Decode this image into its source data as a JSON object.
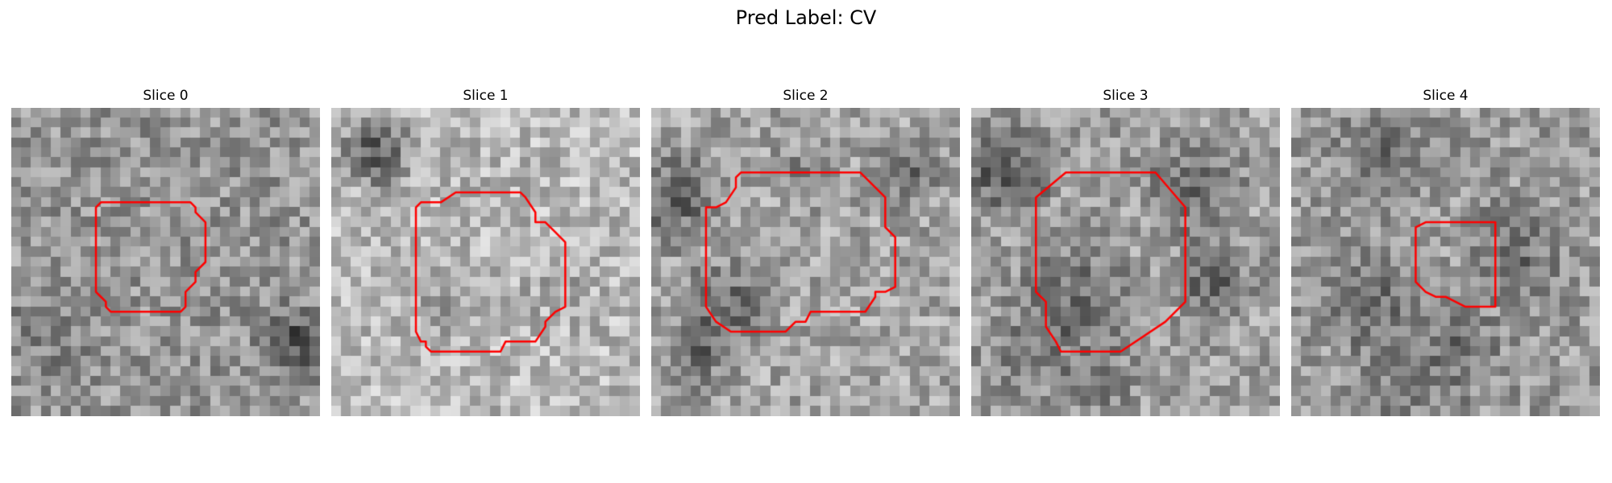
{
  "figure": {
    "title": "Pred Label: CV"
  },
  "colors": {
    "contour": "#ff0000",
    "background": "#ffffff",
    "colormap": "gray"
  },
  "panels": [
    {
      "title": "Slice 0",
      "grid_size": 31,
      "contour": [
        [
          9,
          9.5
        ],
        [
          18,
          9.5
        ],
        [
          18.5,
          10
        ],
        [
          18.5,
          10.5
        ],
        [
          19.5,
          11.5
        ],
        [
          19.5,
          15.5
        ],
        [
          18.5,
          16.5
        ],
        [
          18.5,
          17.5
        ],
        [
          17.5,
          18.5
        ],
        [
          17.5,
          20
        ],
        [
          17,
          20.5
        ],
        [
          10,
          20.5
        ],
        [
          9.5,
          20
        ],
        [
          9.5,
          19.5
        ],
        [
          9,
          19
        ],
        [
          8.5,
          18.5
        ],
        [
          8.5,
          10
        ]
      ]
    },
    {
      "title": "Slice 1",
      "grid_size": 31,
      "contour": [
        [
          9,
          9.5
        ],
        [
          11,
          9.5
        ],
        [
          12.5,
          8.5
        ],
        [
          14,
          8.5
        ],
        [
          19,
          8.5
        ],
        [
          19.5,
          9
        ],
        [
          20.5,
          10.5
        ],
        [
          20.5,
          11.5
        ],
        [
          21.5,
          11.5
        ],
        [
          22.5,
          12.5
        ],
        [
          23.5,
          13.5
        ],
        [
          23.5,
          20
        ],
        [
          22.5,
          20.5
        ],
        [
          21.5,
          21.5
        ],
        [
          21.5,
          22
        ],
        [
          20.5,
          23.5
        ],
        [
          19.5,
          23.5
        ],
        [
          18.5,
          23.5
        ],
        [
          17.5,
          23.5
        ],
        [
          17,
          24.5
        ],
        [
          10,
          24.5
        ],
        [
          9.5,
          24
        ],
        [
          9.5,
          23.5
        ],
        [
          9,
          23.5
        ],
        [
          8.5,
          22.5
        ],
        [
          8.5,
          10
        ]
      ]
    },
    {
      "title": "Slice 2",
      "grid_size": 31,
      "contour": [
        [
          9,
          6.5
        ],
        [
          21,
          6.5
        ],
        [
          23.5,
          9
        ],
        [
          23.5,
          12
        ],
        [
          24.5,
          13
        ],
        [
          24.5,
          18
        ],
        [
          23.5,
          18.5
        ],
        [
          22.5,
          18.5
        ],
        [
          22.5,
          19
        ],
        [
          21.5,
          20.5
        ],
        [
          16,
          20.5
        ],
        [
          15.5,
          21.5
        ],
        [
          14.5,
          21.5
        ],
        [
          13.5,
          22.5
        ],
        [
          8,
          22.5
        ],
        [
          6.5,
          21.5
        ],
        [
          5.5,
          20
        ],
        [
          5.5,
          10
        ],
        [
          6.5,
          10
        ],
        [
          7.5,
          9.5
        ],
        [
          8.5,
          8
        ],
        [
          8.5,
          7
        ]
      ]
    },
    {
      "title": "Slice 3",
      "grid_size": 31,
      "contour": [
        [
          9.5,
          6.5
        ],
        [
          18.5,
          6.5
        ],
        [
          21.5,
          10
        ],
        [
          21.5,
          19.5
        ],
        [
          19.5,
          21.5
        ],
        [
          15,
          24.5
        ],
        [
          9,
          24.5
        ],
        [
          8.5,
          23.5
        ],
        [
          7.5,
          22
        ],
        [
          7.5,
          19.5
        ],
        [
          6.5,
          18.5
        ],
        [
          6.5,
          9
        ]
      ]
    },
    {
      "title": "Slice 4",
      "grid_size": 31,
      "contour": [
        [
          13.5,
          11.5
        ],
        [
          20.5,
          11.5
        ],
        [
          20.5,
          20
        ],
        [
          17.5,
          20
        ],
        [
          16.5,
          19.5
        ],
        [
          15.5,
          19
        ],
        [
          14.5,
          19
        ],
        [
          13.5,
          18.5
        ],
        [
          12.5,
          17.5
        ],
        [
          12.5,
          12
        ]
      ]
    }
  ]
}
